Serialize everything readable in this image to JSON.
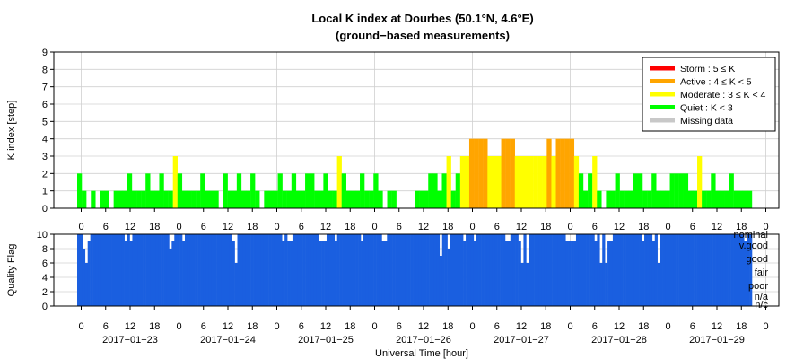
{
  "chart_data": [
    {
      "type": "bar",
      "title": "Local K index at Dourbes (50.1°N, 4.6°E)",
      "subtitle": "(ground−based measurements)",
      "ylabel": "K index [step]",
      "ylim": [
        0,
        9
      ],
      "yticks": [
        "0",
        "1",
        "2",
        "3",
        "4",
        "5",
        "6",
        "7",
        "8",
        "9"
      ],
      "grid": true,
      "legend_placement": "top-right",
      "interval_hours": 3,
      "start": "2017-01-22T21:00",
      "bar_unit_hours": 1,
      "levels_per_hour_note": "",
      "values": [
        2,
        1,
        0,
        1,
        0,
        1,
        1,
        0,
        1,
        1,
        1,
        2,
        1,
        1,
        1,
        2,
        1,
        1,
        2,
        1,
        1,
        3,
        2,
        1,
        1,
        1,
        1,
        2,
        1,
        1,
        1,
        0,
        2,
        1,
        1,
        2,
        1,
        1,
        2,
        1,
        0,
        1,
        1,
        1,
        2,
        1,
        1,
        2,
        1,
        1,
        2,
        2,
        1,
        1,
        2,
        1,
        1,
        3,
        2,
        1,
        1,
        1,
        2,
        1,
        1,
        2,
        1,
        0,
        1,
        1,
        0,
        0,
        0,
        0,
        1,
        1,
        1,
        2,
        2,
        1,
        2,
        3,
        1,
        2,
        3,
        3,
        4,
        4,
        4,
        4,
        3,
        3,
        3,
        4,
        4,
        4,
        3,
        3,
        3,
        3,
        3,
        3,
        3,
        4,
        3,
        4,
        4,
        4,
        4,
        3,
        2,
        1,
        2,
        3,
        1,
        0,
        1,
        1,
        2,
        1,
        1,
        1,
        2,
        2,
        1,
        1,
        2,
        1,
        1,
        1,
        2,
        2,
        2,
        2,
        1,
        1,
        3,
        1,
        1,
        2,
        1,
        1,
        1,
        2,
        1,
        1,
        1,
        1
      ],
      "status_colors": {
        "storm": "#ff0000",
        "active": "#ffa500",
        "moderate": "#ffff00",
        "quiet": "#00ff00",
        "missing": "#c8c8c8"
      },
      "legend": [
        {
          "key": "storm",
          "text": "Storm : 5 ≤ K",
          "color": "#ff0000"
        },
        {
          "key": "active",
          "text": "Active : 4 ≤ K < 5",
          "color": "#ffa500"
        },
        {
          "key": "moderate",
          "text": "Moderate : 3 ≤ K < 4",
          "color": "#ffff00"
        },
        {
          "key": "quiet",
          "text": "Quiet : K < 3",
          "color": "#00ff00"
        },
        {
          "key": "missing",
          "text": "Missing data",
          "color": "#c8c8c8"
        }
      ]
    },
    {
      "type": "bar",
      "ylabel": "Quality Flag",
      "ylim": [
        0,
        10
      ],
      "yticks": [
        "0",
        "2",
        "4",
        "6",
        "8",
        "10"
      ],
      "xlabel": "Universal Time [hour]",
      "hour_ticks": [
        "0",
        "6",
        "12",
        "18",
        "0",
        "6",
        "12",
        "18",
        "0",
        "6",
        "12",
        "18",
        "0",
        "6",
        "12",
        "18",
        "0",
        "6",
        "12",
        "18",
        "0",
        "6",
        "12",
        "18",
        "0",
        "6",
        "12",
        "18",
        "0"
      ],
      "date_labels": [
        "2017−01−23",
        "2017−01−24",
        "2017−01−25",
        "2017−01−26",
        "2017−01−27",
        "2017−01−28",
        "2017−01−29"
      ],
      "color": "#1a5fe0",
      "flag_labels": [
        "nominal",
        "v.good",
        "good",
        "fair",
        "poor",
        "n/a",
        "n/c"
      ],
      "values_note": "",
      "values": [
        10,
        10,
        8,
        6,
        9,
        10,
        10,
        10,
        10,
        10,
        10,
        10,
        10,
        10,
        10,
        10,
        10,
        10,
        9,
        10,
        9,
        10,
        10,
        10,
        10,
        10,
        10,
        10,
        10,
        10,
        10,
        10,
        10,
        10,
        10,
        8,
        9,
        10,
        10,
        10,
        9,
        10,
        10,
        10,
        10,
        10,
        10,
        10,
        10,
        10,
        10,
        10,
        10,
        10,
        10,
        10,
        10,
        10,
        10,
        9,
        6,
        10,
        10,
        10,
        10,
        10,
        10,
        10,
        10,
        10,
        10,
        10,
        10,
        10,
        10,
        10,
        10,
        10,
        9,
        10,
        9,
        9,
        10,
        10,
        10,
        10,
        10,
        10,
        10,
        10,
        10,
        10,
        9,
        9,
        9,
        10,
        10,
        10,
        9,
        10,
        10,
        10,
        10,
        10,
        10,
        10,
        10,
        10,
        9,
        10,
        10,
        10,
        10,
        10,
        10,
        10,
        9,
        9,
        10,
        10,
        10,
        10,
        10,
        10,
        10,
        10,
        10,
        10,
        10,
        10,
        10,
        10,
        10,
        10,
        10,
        10,
        10,
        10,
        7,
        10,
        10,
        8,
        10,
        10,
        10,
        10,
        10,
        9,
        10,
        10,
        10,
        9,
        10,
        10,
        10,
        10,
        10,
        10,
        10,
        10,
        10,
        10,
        10,
        9,
        9,
        10,
        10,
        10,
        9,
        6,
        10,
        6,
        10,
        10,
        10,
        10,
        10,
        10,
        10,
        10,
        10,
        10,
        10,
        10,
        10,
        10,
        9,
        9,
        9,
        9,
        10,
        10,
        10,
        10,
        10,
        10,
        10,
        9,
        10,
        6,
        10,
        6,
        9,
        9,
        10,
        10,
        10,
        10,
        10,
        10,
        10,
        10,
        10,
        10,
        10,
        9,
        10,
        10,
        10,
        9,
        10,
        6,
        10,
        10,
        10,
        10,
        10,
        10,
        10,
        10,
        10,
        10,
        10,
        10,
        10,
        10,
        10,
        10,
        10,
        10,
        10,
        10,
        10,
        10,
        10,
        10,
        10,
        10,
        10,
        10,
        10,
        10,
        10,
        10,
        9,
        10,
        10
      ]
    }
  ]
}
